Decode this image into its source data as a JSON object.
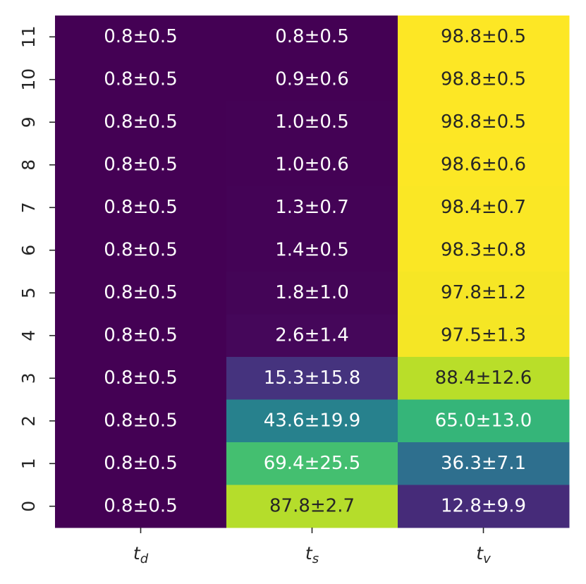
{
  "chart_data": {
    "type": "heatmap",
    "colormap": "viridis",
    "x_categories": [
      "t_d",
      "t_s",
      "t_v"
    ],
    "y_categories": [
      "11",
      "10",
      "9",
      "8",
      "7",
      "6",
      "5",
      "4",
      "3",
      "2",
      "1",
      "0"
    ],
    "values": [
      [
        0.8,
        0.8,
        98.8
      ],
      [
        0.8,
        0.9,
        98.8
      ],
      [
        0.8,
        1.0,
        98.8
      ],
      [
        0.8,
        1.0,
        98.6
      ],
      [
        0.8,
        1.3,
        98.4
      ],
      [
        0.8,
        1.4,
        98.3
      ],
      [
        0.8,
        1.8,
        97.8
      ],
      [
        0.8,
        2.6,
        97.5
      ],
      [
        0.8,
        15.3,
        88.4
      ],
      [
        0.8,
        43.6,
        65.0
      ],
      [
        0.8,
        69.4,
        36.3
      ],
      [
        0.8,
        87.8,
        12.8
      ]
    ],
    "errors": [
      [
        0.5,
        0.5,
        0.5
      ],
      [
        0.5,
        0.6,
        0.5
      ],
      [
        0.5,
        0.5,
        0.5
      ],
      [
        0.5,
        0.6,
        0.6
      ],
      [
        0.5,
        0.7,
        0.7
      ],
      [
        0.5,
        0.5,
        0.8
      ],
      [
        0.5,
        1.0,
        1.2
      ],
      [
        0.5,
        1.4,
        1.3
      ],
      [
        0.5,
        15.8,
        12.6
      ],
      [
        0.5,
        19.9,
        13.0
      ],
      [
        0.5,
        25.5,
        7.1
      ],
      [
        0.5,
        2.7,
        9.9
      ]
    ],
    "value_labels": [
      [
        "0.8±0.5",
        "0.8±0.5",
        "98.8±0.5"
      ],
      [
        "0.8±0.5",
        "0.9±0.6",
        "98.8±0.5"
      ],
      [
        "0.8±0.5",
        "1.0±0.5",
        "98.8±0.5"
      ],
      [
        "0.8±0.5",
        "1.0±0.6",
        "98.6±0.6"
      ],
      [
        "0.8±0.5",
        "1.3±0.7",
        "98.4±0.7"
      ],
      [
        "0.8±0.5",
        "1.4±0.5",
        "98.3±0.8"
      ],
      [
        "0.8±0.5",
        "1.8±1.0",
        "97.8±1.2"
      ],
      [
        "0.8±0.5",
        "2.6±1.4",
        "97.5±1.3"
      ],
      [
        "0.8±0.5",
        "15.3±15.8",
        "88.4±12.6"
      ],
      [
        "0.8±0.5",
        "43.6±19.9",
        "65.0±13.0"
      ],
      [
        "0.8±0.5",
        "69.4±25.5",
        "36.3±7.1"
      ],
      [
        "0.8±0.5",
        "87.8±2.7",
        "12.8±9.9"
      ]
    ]
  }
}
